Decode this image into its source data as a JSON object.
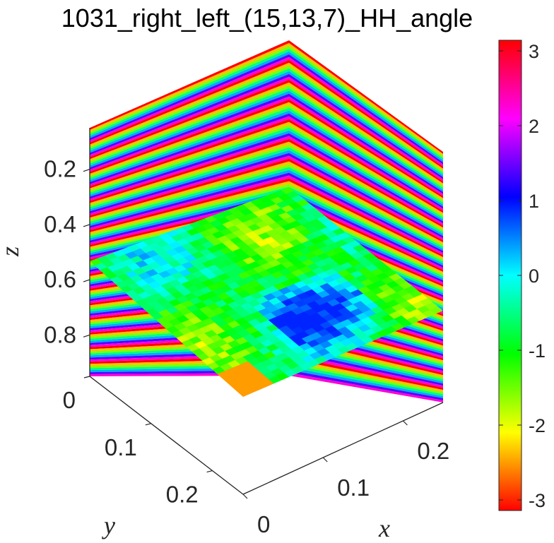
{
  "chart_data": {
    "type": "heatmap",
    "title": "1031_right_left_(15,13,7)_HH_angle",
    "plot_style": "3-D slice plot: two vertical wall slices showing tightly banded phase stripes and one horizontal slice showing a patchy phase map",
    "axes": {
      "x": {
        "label": "x",
        "ticks": [
          "0",
          "0.1",
          "0.2"
        ],
        "range": [
          0,
          0.25
        ]
      },
      "y": {
        "label": "y",
        "ticks": [
          "0",
          "0.1",
          "0.2"
        ],
        "range": [
          0,
          0.25
        ]
      },
      "z": {
        "label": "z",
        "ticks": [
          "0.2",
          "0.4",
          "0.6",
          "0.8"
        ],
        "range": [
          0.05,
          0.95
        ],
        "reversed": true
      }
    },
    "colorbar": {
      "colormap": "hsv",
      "range": [
        -3.1416,
        3.1416
      ],
      "ticks": [
        "3",
        "2",
        "1",
        "0",
        "-1",
        "-2",
        "-3"
      ],
      "location": "right"
    },
    "horizontal_slice": {
      "z_level": 0.6,
      "dominant_phase": -0.8,
      "phase_range": [
        -2.5,
        0.9
      ]
    },
    "vertical_slices": {
      "planes": [
        "x = 0.25 wall",
        "y = 0.25 wall"
      ],
      "pattern": "horizontal stripes cycling through the full hsv range along z"
    },
    "grid": false
  }
}
